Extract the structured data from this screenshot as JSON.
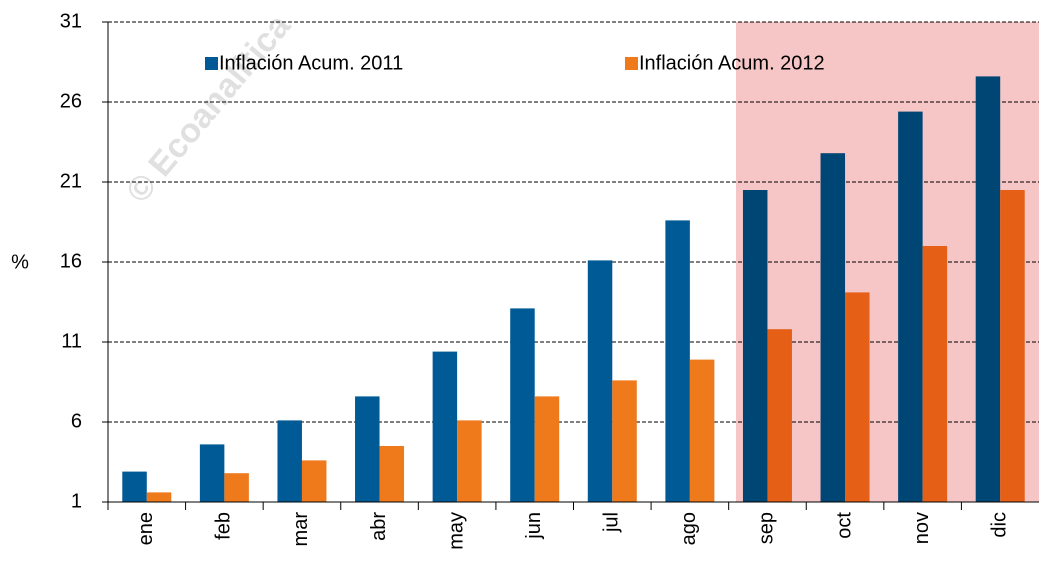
{
  "chart_data": {
    "type": "bar",
    "watermark": "© Ecoanalítica",
    "y_label": "%",
    "categories": [
      "ene",
      "feb",
      "mar",
      "abr",
      "may",
      "jun",
      "jul",
      "ago",
      "sep",
      "oct",
      "nov",
      "dic"
    ],
    "series": [
      {
        "name": "Inflación Acum. 2011",
        "color": "#005a96",
        "values": [
          2.9,
          4.6,
          6.1,
          7.6,
          10.4,
          13.1,
          16.1,
          18.6,
          20.5,
          22.8,
          25.4,
          27.6
        ]
      },
      {
        "name": "Inflación Acum. 2012",
        "color": "#ee7a1c",
        "values": [
          1.6,
          2.8,
          3.6,
          4.5,
          6.1,
          7.6,
          8.6,
          9.9,
          11.8,
          14.1,
          17,
          20.5
        ]
      }
    ],
    "ylim": [
      1,
      31
    ],
    "yticks": [
      1,
      6,
      11,
      16,
      21,
      26,
      31
    ],
    "grid": true
  }
}
